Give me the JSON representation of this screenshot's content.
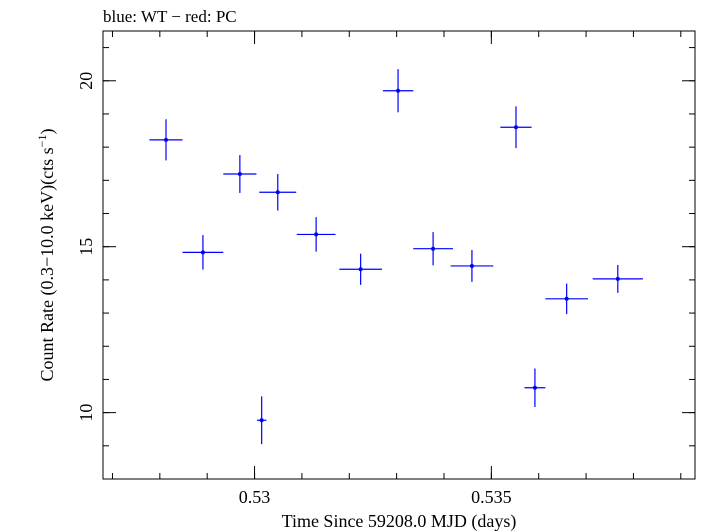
{
  "chart_data": {
    "type": "scatter",
    "title": "blue: WT − red: PC",
    "xlabel": "Time Since 59208.0 MJD (days)",
    "ylabel_main": "Count Rate (0.3−10.0 keV)(cts s",
    "ylabel_sup": "−1",
    "ylabel_end": ")",
    "xlim": [
      0.5268,
      0.5393
    ],
    "ylim": [
      8.0,
      21.5
    ],
    "x_ticks": [
      {
        "value": 0.53,
        "label": "0.53"
      },
      {
        "value": 0.535,
        "label": "0.535"
      }
    ],
    "y_ticks": [
      {
        "value": 10,
        "label": "10"
      },
      {
        "value": 15,
        "label": "15"
      },
      {
        "value": 20,
        "label": "20"
      }
    ],
    "x_minor_step": 0.001,
    "y_minor_step": 1,
    "grid": false,
    "series": [
      {
        "color": "#0000ff",
        "points": [
          {
            "x": 0.52813,
            "xerr": 0.00035,
            "y": 18.22,
            "yerr": 0.62
          },
          {
            "x": 0.52891,
            "xerr": 0.00043,
            "y": 14.83,
            "yerr": 0.52
          },
          {
            "x": 0.52969,
            "xerr": 0.00035,
            "y": 17.19,
            "yerr": 0.57
          },
          {
            "x": 0.53015,
            "xerr": 0.0001,
            "y": 9.77,
            "yerr": 0.72
          },
          {
            "x": 0.53049,
            "xerr": 0.00039,
            "y": 16.64,
            "yerr": 0.55
          },
          {
            "x": 0.5313,
            "xerr": 0.00041,
            "y": 15.37,
            "yerr": 0.52
          },
          {
            "x": 0.53224,
            "xerr": 0.00045,
            "y": 14.32,
            "yerr": 0.47
          },
          {
            "x": 0.53303,
            "xerr": 0.00032,
            "y": 19.7,
            "yerr": 0.65
          },
          {
            "x": 0.53377,
            "xerr": 0.00042,
            "y": 14.94,
            "yerr": 0.5
          },
          {
            "x": 0.53459,
            "xerr": 0.00045,
            "y": 14.42,
            "yerr": 0.48
          },
          {
            "x": 0.53552,
            "xerr": 0.00033,
            "y": 18.6,
            "yerr": 0.63
          },
          {
            "x": 0.53592,
            "xerr": 0.00022,
            "y": 10.75,
            "yerr": 0.58
          },
          {
            "x": 0.53659,
            "xerr": 0.00045,
            "y": 13.43,
            "yerr": 0.46
          },
          {
            "x": 0.53767,
            "xerr": 0.00053,
            "y": 14.03,
            "yerr": 0.42
          }
        ]
      }
    ]
  }
}
